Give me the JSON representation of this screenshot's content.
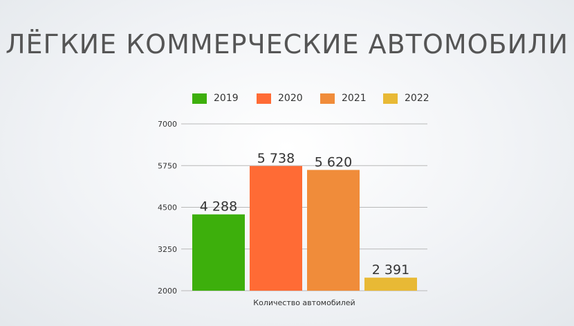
{
  "slide": {
    "title": "ЛЁГКИЕ КОММЕРЧЕСКИЕ АВТОМОБИЛИ"
  },
  "chart_data": {
    "type": "bar",
    "title": "",
    "xlabel": "Количество автомобилей",
    "ylabel": "",
    "ylim": [
      2000,
      7000
    ],
    "yticks": [
      2000,
      3250,
      4500,
      5750,
      7000
    ],
    "grid": true,
    "legend_position": "top",
    "categories": [
      "Количество автомобилей"
    ],
    "series": [
      {
        "name": "2019",
        "values": [
          4288
        ],
        "label": "4 288",
        "color": "#3daf0c"
      },
      {
        "name": "2020",
        "values": [
          5738
        ],
        "label": "5 738",
        "color": "#ff6b35"
      },
      {
        "name": "2021",
        "values": [
          5620
        ],
        "label": "5 620",
        "color": "#f08c3a"
      },
      {
        "name": "2022",
        "values": [
          2391
        ],
        "label": "2 391",
        "color": "#e8b935"
      }
    ]
  }
}
